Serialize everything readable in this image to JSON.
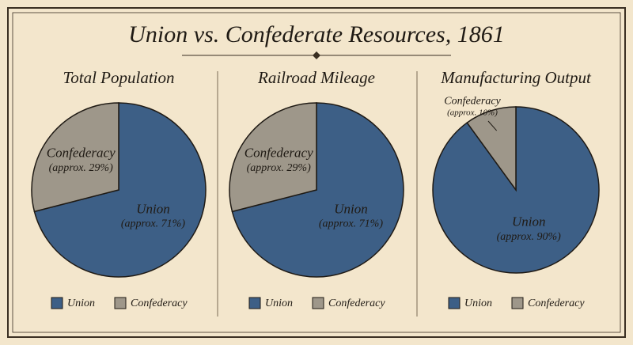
{
  "title": "Union vs. Confederate Resources, 1861",
  "chart_data": [
    {
      "type": "pie",
      "title": "Total Population",
      "categories": [
        "Union",
        "Confederacy"
      ],
      "values": [
        71,
        29
      ],
      "value_labels": [
        "(approx. 71%)",
        "(approx. 29%)"
      ],
      "colors": [
        "#3d5f86",
        "#9e978a"
      ]
    },
    {
      "type": "pie",
      "title": "Railroad Mileage",
      "categories": [
        "Union",
        "Confederacy"
      ],
      "values": [
        71,
        29
      ],
      "value_labels": [
        "(approx. 71%)",
        "(approx. 29%)"
      ],
      "colors": [
        "#3d5f86",
        "#9e978a"
      ]
    },
    {
      "type": "pie",
      "title": "Manufacturing Output",
      "categories": [
        "Union",
        "Confederacy"
      ],
      "values": [
        90,
        10
      ],
      "value_labels": [
        "(approx. 90%)",
        "(approx. 10%)"
      ],
      "colors": [
        "#3d5f86",
        "#9e978a"
      ]
    }
  ]
}
